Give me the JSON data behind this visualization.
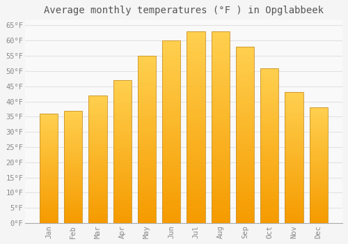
{
  "title": "Average monthly temperatures (°F ) in Opglabbeek",
  "months": [
    "Jan",
    "Feb",
    "Mar",
    "Apr",
    "May",
    "Jun",
    "Jul",
    "Aug",
    "Sep",
    "Oct",
    "Nov",
    "Dec"
  ],
  "values": [
    36,
    37,
    42,
    47,
    55,
    60,
    63,
    63,
    58,
    51,
    43,
    38
  ],
  "bar_color_top": "#FFC040",
  "bar_color_bottom": "#F59B00",
  "bar_edge_color": "#C8922A",
  "ylim": [
    0,
    67
  ],
  "yticks": [
    0,
    5,
    10,
    15,
    20,
    25,
    30,
    35,
    40,
    45,
    50,
    55,
    60,
    65
  ],
  "ylabel_suffix": "°F",
  "background_color": "#f5f5f5",
  "plot_bg_color": "#f9f9f9",
  "grid_color": "#e0e0e0",
  "title_fontsize": 10,
  "tick_fontsize": 7.5,
  "font_family": "monospace",
  "bar_width": 0.75
}
